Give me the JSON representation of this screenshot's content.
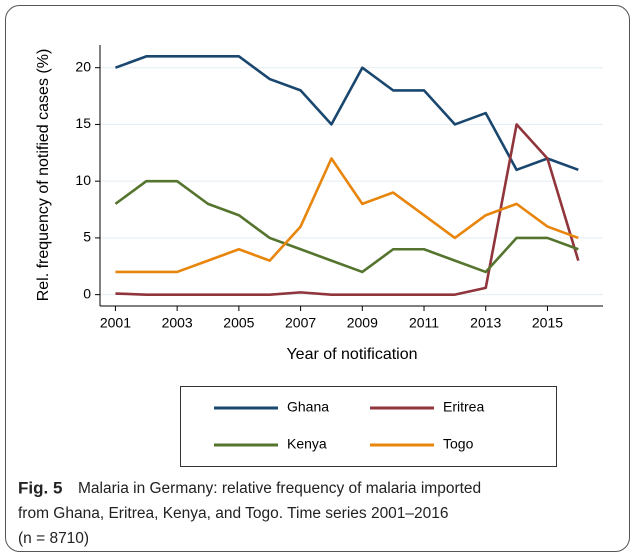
{
  "chart_data": {
    "type": "line",
    "x_label": "Year of notification",
    "y_label": "Rel. frequency of notified cases (%)",
    "x": [
      2001,
      2002,
      2003,
      2004,
      2005,
      2006,
      2007,
      2008,
      2009,
      2010,
      2011,
      2012,
      2013,
      2014,
      2015,
      2016
    ],
    "series": [
      {
        "name": "Ghana",
        "color": "#1a476f",
        "values": [
          20,
          21,
          21,
          21,
          21,
          19,
          18,
          15,
          20,
          18,
          18,
          15,
          16,
          11,
          12,
          11
        ]
      },
      {
        "name": "Eritrea",
        "color": "#90353b",
        "values": [
          0.1,
          0,
          0,
          0,
          0,
          0,
          0.2,
          0,
          0,
          0,
          0,
          0,
          0.6,
          15,
          12,
          3
        ]
      },
      {
        "name": "Kenya",
        "color": "#55752f",
        "values": [
          8,
          10,
          10,
          8,
          7,
          5,
          4,
          3,
          2,
          4,
          4,
          3,
          2,
          5,
          5,
          4
        ]
      },
      {
        "name": "Togo",
        "color": "#e8850c",
        "values": [
          2,
          2,
          2,
          3,
          4,
          3,
          6,
          12,
          8,
          9,
          7,
          5,
          7,
          8,
          6,
          5
        ]
      }
    ],
    "xlim": [
      2000.5,
      2016.8
    ],
    "ylim": [
      -1,
      22
    ],
    "xticks": [
      2001,
      2003,
      2005,
      2007,
      2009,
      2011,
      2013,
      2015
    ],
    "yticks": [
      0,
      5,
      10,
      15,
      20
    ],
    "grid": true,
    "legend": "bottom"
  },
  "caption": {
    "label": "Fig. 5",
    "lines": [
      "Malaria in Germany: relative frequency of malaria imported",
      "from Ghana, Eritrea, Kenya, and Togo. Time series 2001–2016",
      "(n = 8710)"
    ]
  }
}
